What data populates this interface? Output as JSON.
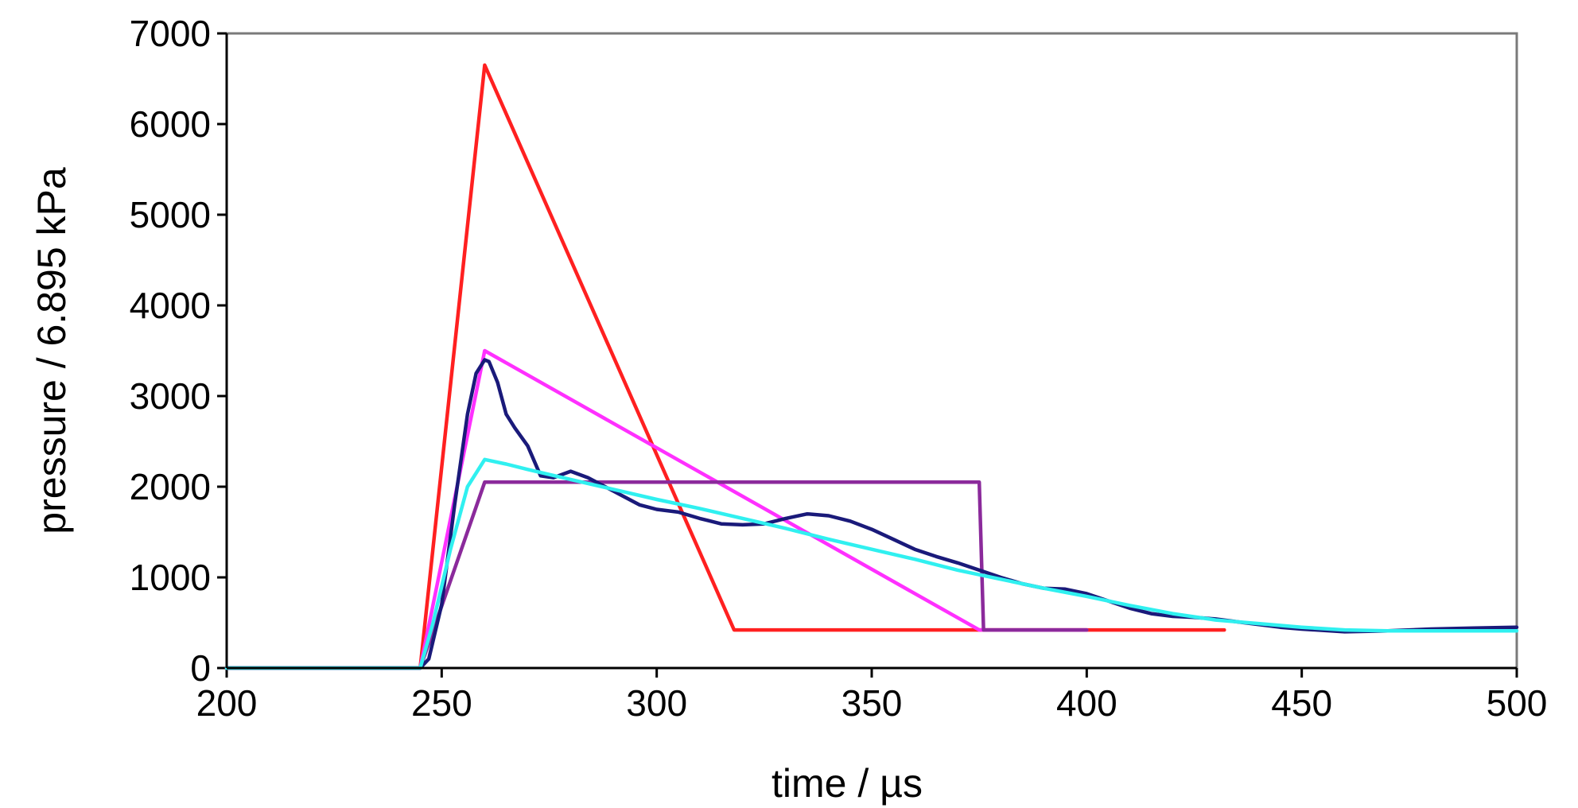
{
  "chart_data": {
    "type": "line",
    "title": "",
    "xlabel": "time / µs",
    "ylabel": "pressure / 6.895 kPa",
    "xlim": [
      200,
      500
    ],
    "ylim": [
      0,
      7000
    ],
    "xticks": [
      200,
      250,
      300,
      350,
      400,
      450,
      500
    ],
    "yticks": [
      0,
      1000,
      2000,
      3000,
      4000,
      5000,
      6000,
      7000
    ],
    "grid": false,
    "legend": "none",
    "series": [
      {
        "color": "#ff2020",
        "x": [
          200,
          245,
          260,
          318,
          432
        ],
        "y": [
          0,
          0,
          6650,
          420,
          420
        ]
      },
      {
        "color": "#ff30ff",
        "x": [
          200,
          245,
          260,
          375,
          400
        ],
        "y": [
          0,
          0,
          3500,
          420,
          420
        ]
      },
      {
        "color": "#8b2a9b",
        "x": [
          200,
          245,
          260,
          375,
          376,
          400
        ],
        "y": [
          0,
          0,
          2050,
          2050,
          420,
          420
        ]
      },
      {
        "color": "#1a1a7a",
        "x": [
          200,
          245,
          247,
          250,
          253,
          256,
          258,
          260,
          261,
          263,
          265,
          267,
          270,
          273,
          276,
          280,
          284,
          288,
          292,
          296,
          300,
          305,
          310,
          315,
          320,
          325,
          330,
          335,
          340,
          345,
          350,
          355,
          360,
          365,
          370,
          375,
          380,
          385,
          390,
          395,
          400,
          405,
          410,
          415,
          420,
          425,
          430,
          435,
          440,
          445,
          450,
          460,
          470,
          480,
          490,
          500
        ],
        "y": [
          0,
          0,
          100,
          700,
          1800,
          2800,
          3250,
          3400,
          3380,
          3150,
          2800,
          2650,
          2450,
          2120,
          2100,
          2170,
          2100,
          2000,
          1900,
          1800,
          1750,
          1720,
          1650,
          1590,
          1580,
          1590,
          1650,
          1700,
          1680,
          1620,
          1530,
          1420,
          1310,
          1230,
          1160,
          1080,
          1000,
          930,
          880,
          870,
          820,
          740,
          660,
          600,
          570,
          560,
          540,
          510,
          480,
          450,
          430,
          400,
          410,
          430,
          440,
          450
        ]
      },
      {
        "color": "#30f0f0",
        "x": [
          200,
          245,
          248,
          252,
          256,
          260,
          265,
          270,
          280,
          290,
          300,
          310,
          320,
          330,
          340,
          350,
          360,
          370,
          380,
          390,
          400,
          410,
          420,
          430,
          440,
          450,
          460,
          470,
          480,
          490,
          500
        ],
        "y": [
          0,
          0,
          500,
          1300,
          2000,
          2300,
          2250,
          2190,
          2080,
          1970,
          1860,
          1760,
          1650,
          1540,
          1420,
          1310,
          1200,
          1080,
          980,
          880,
          790,
          690,
          600,
          530,
          490,
          450,
          420,
          410,
          410,
          410,
          410
        ]
      }
    ]
  }
}
